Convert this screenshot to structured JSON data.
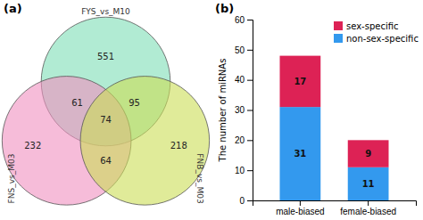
{
  "chart_data": [
    {
      "type": "venn",
      "title": "(a)",
      "series": [
        {
          "name": "FYS_vs_M10",
          "color": "#7DDDB5"
        },
        {
          "name": "FNS_vs_M03",
          "color": "#F090C0"
        },
        {
          "name": "FNB_vs_M03",
          "color": "#CCDD55"
        }
      ],
      "regions": [
        {
          "sets": [
            "FYS_vs_M10"
          ],
          "value": 551
        },
        {
          "sets": [
            "FNS_vs_M03"
          ],
          "value": 232
        },
        {
          "sets": [
            "FNB_vs_M03"
          ],
          "value": 218
        },
        {
          "sets": [
            "FYS_vs_M10",
            "FNS_vs_M03"
          ],
          "value": 61
        },
        {
          "sets": [
            "FYS_vs_M10",
            "FNB_vs_M03"
          ],
          "value": 95
        },
        {
          "sets": [
            "FNS_vs_M03",
            "FNB_vs_M03"
          ],
          "value": 64
        },
        {
          "sets": [
            "FYS_vs_M10",
            "FNS_vs_M03",
            "FNB_vs_M03"
          ],
          "value": 74
        }
      ]
    },
    {
      "type": "bar",
      "title": "(b)",
      "stacked": true,
      "data_labels": true,
      "legend": "upper right",
      "grid": false,
      "categories": [
        "male-biased",
        "female-biased"
      ],
      "series": [
        {
          "name": "non-sex-specific",
          "color": "#3399EE",
          "values": [
            31,
            11
          ]
        },
        {
          "name": "sex-specific",
          "color": "#DD2255",
          "values": [
            17,
            9
          ]
        }
      ],
      "ylabel": "The number of miRNAs",
      "ylim": [
        0,
        60
      ],
      "yticks": [
        0,
        10,
        20,
        30,
        40,
        50,
        60
      ]
    }
  ]
}
